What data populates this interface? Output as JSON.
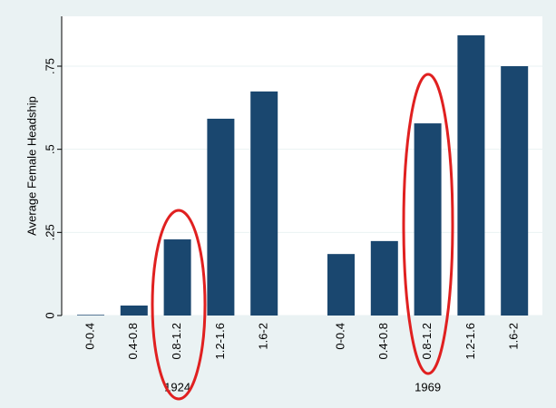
{
  "chart_data": {
    "type": "bar",
    "y_label": "Average Female Headship",
    "color": "#1a476f",
    "grid": true,
    "ylim": [
      0,
      0.9
    ],
    "yticks": [
      0,
      {
        "value": 0.25,
        "label": ".25"
      },
      {
        "value": 0.5,
        "label": ".5"
      },
      {
        "value": 0.75,
        "label": ".75"
      }
    ],
    "groups": [
      {
        "label": "1924",
        "categories": [
          "0-0.4",
          "0.4-0.8",
          "0.8-1.2",
          "1.2-1.6",
          "1.6-2"
        ],
        "values": [
          0.002,
          0.03,
          0.229,
          0.592,
          0.674
        ]
      },
      {
        "label": "1969",
        "categories": [
          "0-0.4",
          "0.4-0.8",
          "0.8-1.2",
          "1.2-1.6",
          "1.6-2"
        ],
        "values": [
          0.185,
          0.224,
          0.578,
          0.843,
          0.75
        ]
      }
    ]
  }
}
